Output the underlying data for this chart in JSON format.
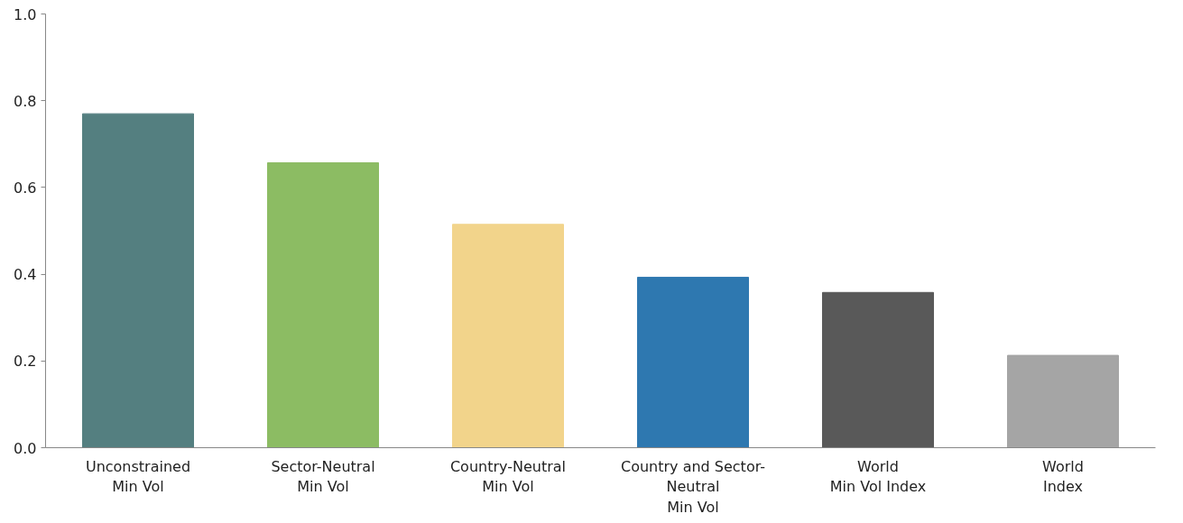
{
  "chart_data": {
    "type": "bar",
    "categories": [
      "Unconstrained\nMin Vol",
      "Sector-Neutral\nMin Vol",
      "Country-Neutral\nMin Vol",
      "Country and Sector-\nNeutral\nMin Vol",
      "World\nMin Vol Index",
      "World\nIndex"
    ],
    "values": [
      0.77,
      0.657,
      0.515,
      0.393,
      0.358,
      0.213
    ],
    "colors": [
      "#547f80",
      "#8cbc63",
      "#f2d48b",
      "#2e78b0",
      "#595959",
      "#a5a5a5"
    ],
    "ylim": [
      0,
      1.0
    ],
    "yticks": [
      {
        "value": 0,
        "label": "0.0"
      },
      {
        "value": 0.2,
        "label": "0.2"
      },
      {
        "value": 0.4,
        "label": "0.4"
      },
      {
        "value": 0.6,
        "label": "0.6"
      },
      {
        "value": 0.8,
        "label": "0.8"
      },
      {
        "value": 1.0,
        "label": "1.0"
      }
    ],
    "grid": false
  }
}
